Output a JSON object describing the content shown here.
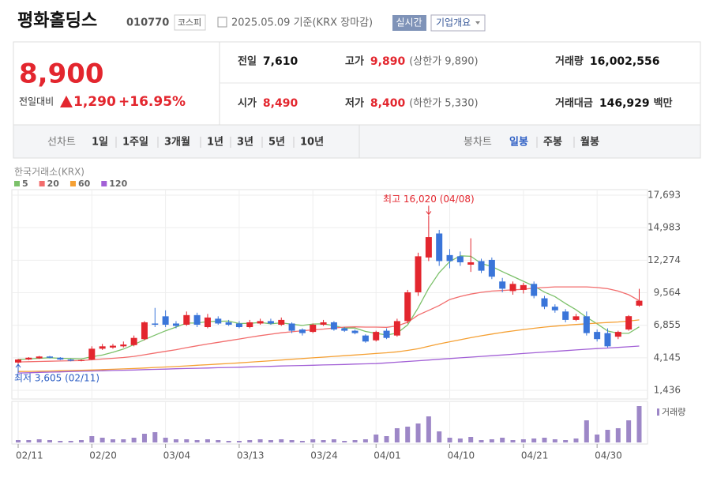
{
  "header": {
    "name": "평화홀딩스",
    "code": "010770",
    "market": "코스피",
    "date": "2025.05.09 기준(KRX 장마감)",
    "realtime": "실시간",
    "company": "기업개요"
  },
  "quote": {
    "price": "8,900",
    "change_label": "전일대비",
    "change": "1,290",
    "change_pct": "+16.95%",
    "items": [
      {
        "label": "전일",
        "value": "7,610"
      },
      {
        "label": "고가",
        "value": "9,890",
        "note": "(상한가 9,890)"
      },
      {
        "label": "거래량",
        "value": "16,002,556"
      },
      {
        "label": "시가",
        "value": "8,490"
      },
      {
        "label": "저가",
        "value": "8,400",
        "note": "(하한가 5,330)"
      },
      {
        "label": "거래대금",
        "value": "146,929",
        "unit": "백만"
      }
    ]
  },
  "tabs": {
    "line_label": "선차트",
    "line": [
      "1일",
      "1주일",
      "3개월",
      "1년",
      "3년",
      "5년",
      "10년"
    ],
    "candle_label": "봉차트",
    "candle": [
      "일봉",
      "주봉",
      "월봉"
    ]
  },
  "chart_data": {
    "type": "candlestick",
    "source": "한국거래소(KRX)",
    "categories": [
      "02/11",
      null,
      null,
      null,
      null,
      null,
      null,
      "02/20",
      null,
      null,
      null,
      null,
      null,
      null,
      "03/04",
      null,
      null,
      null,
      null,
      null,
      null,
      "03/13",
      null,
      null,
      null,
      null,
      null,
      null,
      "03/24",
      null,
      null,
      null,
      null,
      null,
      "04/01",
      null,
      null,
      null,
      null,
      null,
      null,
      "04/10",
      null,
      null,
      null,
      null,
      null,
      null,
      "04/21",
      null,
      null,
      null,
      null,
      null,
      null,
      "04/30",
      null,
      null,
      null,
      null
    ],
    "open": [
      3750,
      4000,
      4100,
      4250,
      4150,
      4000,
      3900,
      4000,
      4900,
      5000,
      5100,
      5200,
      5700,
      7000,
      7600,
      7000,
      6900,
      7700,
      6700,
      7400,
      7100,
      7000,
      6700,
      7000,
      7200,
      6900,
      7000,
      6500,
      6300,
      6900,
      7100,
      6600,
      6400,
      6000,
      5600,
      6400,
      6000,
      7200,
      9600,
      12500,
      14500,
      12700,
      12600,
      11900,
      12200,
      12300,
      10500,
      9700,
      9800,
      10300,
      9100,
      8400,
      8000,
      7300,
      7600,
      6300,
      6200,
      5900,
      6500,
      8490
    ],
    "high": [
      4050,
      4200,
      4300,
      4300,
      4200,
      4050,
      4000,
      5100,
      5300,
      5300,
      5500,
      6000,
      7200,
      8300,
      8100,
      7200,
      8000,
      7900,
      7800,
      7600,
      7300,
      7200,
      7300,
      7400,
      7400,
      7500,
      7100,
      6600,
      7000,
      7300,
      7200,
      6700,
      6500,
      6100,
      6400,
      6600,
      7400,
      9800,
      12900,
      16020,
      14800,
      13200,
      13000,
      14100,
      12400,
      12500,
      10800,
      10500,
      10400,
      10500,
      9300,
      8600,
      8200,
      7800,
      8000,
      6500,
      6600,
      6400,
      7700,
      9890
    ],
    "low": [
      3605,
      3950,
      4050,
      4100,
      3950,
      3850,
      3850,
      3950,
      4800,
      4900,
      5000,
      5100,
      5600,
      6700,
      6700,
      6600,
      6800,
      6700,
      6600,
      6900,
      6800,
      6600,
      6600,
      6900,
      6900,
      6800,
      6200,
      6000,
      6200,
      6800,
      6400,
      6300,
      6100,
      5400,
      5500,
      5700,
      5900,
      7000,
      9300,
      12200,
      11800,
      11600,
      11800,
      11300,
      11200,
      10700,
      9600,
      9400,
      9500,
      9100,
      8200,
      7900,
      7100,
      7200,
      6000,
      5500,
      5000,
      5700,
      6400,
      8400
    ],
    "close": [
      4000,
      4150,
      4250,
      4150,
      4000,
      3900,
      3950,
      4900,
      5100,
      5150,
      5250,
      5800,
      7100,
      6900,
      6900,
      6800,
      7700,
      6900,
      7500,
      7000,
      6900,
      6700,
      7100,
      7200,
      7000,
      7300,
      6400,
      6200,
      6900,
      7100,
      6500,
      6400,
      6200,
      5500,
      6300,
      5800,
      7200,
      9600,
      12600,
      14200,
      12200,
      12200,
      12100,
      12100,
      11400,
      10900,
      9900,
      10300,
      10200,
      9300,
      8400,
      8100,
      7300,
      7600,
      6200,
      5700,
      5100,
      6300,
      7610,
      8900
    ],
    "up_color": "#e3262e",
    "down_color": "#3a75d9",
    "series": [
      {
        "name": "5",
        "color": "#7cc16a",
        "values": [
          4000,
          4050,
          4100,
          4150,
          4100,
          4080,
          4050,
          4230,
          4370,
          4600,
          4870,
          5240,
          5660,
          6030,
          6390,
          6700,
          7040,
          7040,
          7160,
          7180,
          7200,
          7000,
          7020,
          7080,
          6980,
          7060,
          6940,
          6840,
          6960,
          6980,
          6820,
          6620,
          6620,
          6340,
          6180,
          6040,
          6200,
          6880,
          8300,
          9940,
          11240,
          12160,
          12640,
          12600,
          12000,
          11740,
          11320,
          10920,
          10520,
          10120,
          9620,
          9240,
          8660,
          8140,
          7520,
          6980,
          6380,
          6180,
          6180,
          6720
        ]
      },
      {
        "name": "20",
        "color": "#f26d6d",
        "values": [
          3800,
          3820,
          3840,
          3860,
          3880,
          3900,
          3920,
          3980,
          4040,
          4100,
          4170,
          4260,
          4400,
          4540,
          4680,
          4820,
          4990,
          5140,
          5290,
          5430,
          5570,
          5710,
          5850,
          5990,
          6110,
          6230,
          6310,
          6390,
          6470,
          6540,
          6620,
          6700,
          6720,
          6700,
          6700,
          6680,
          6800,
          7100,
          7700,
          8100,
          8500,
          9000,
          9250,
          9450,
          9600,
          9700,
          9750,
          9800,
          9850,
          9950,
          10000,
          10050,
          10050,
          10050,
          10050,
          10000,
          9900,
          9700,
          9400,
          8900
        ]
      },
      {
        "name": "60",
        "color": "#f5a033",
        "values": [
          3000,
          3010,
          3020,
          3040,
          3060,
          3080,
          3100,
          3130,
          3160,
          3190,
          3220,
          3250,
          3290,
          3340,
          3380,
          3420,
          3470,
          3520,
          3570,
          3620,
          3670,
          3720,
          3780,
          3840,
          3900,
          3960,
          4020,
          4080,
          4140,
          4200,
          4260,
          4320,
          4380,
          4440,
          4500,
          4560,
          4640,
          4760,
          4900,
          5100,
          5300,
          5480,
          5650,
          5820,
          5980,
          6120,
          6260,
          6380,
          6500,
          6600,
          6700,
          6780,
          6850,
          6920,
          6980,
          7030,
          7080,
          7130,
          7200,
          7300
        ]
      },
      {
        "name": "120",
        "color": "#a260d6",
        "values": [
          2880,
          2900,
          2930,
          2950,
          2970,
          3000,
          3020,
          3040,
          3060,
          3090,
          3110,
          3130,
          3160,
          3180,
          3200,
          3230,
          3250,
          3270,
          3290,
          3320,
          3340,
          3360,
          3390,
          3410,
          3430,
          3460,
          3480,
          3500,
          3520,
          3550,
          3570,
          3590,
          3620,
          3640,
          3660,
          3720,
          3780,
          3840,
          3900,
          3960,
          4020,
          4080,
          4140,
          4200,
          4260,
          4320,
          4380,
          4440,
          4500,
          4560,
          4620,
          4680,
          4740,
          4800,
          4860,
          4910,
          4960,
          5010,
          5060,
          5120
        ]
      }
    ],
    "volume": {
      "name": "거래량",
      "color": "#9d87c7",
      "values": [
        1044000,
        1044000,
        1392000,
        1044000,
        696000,
        696000,
        1044000,
        2784000,
        2088000,
        1392000,
        1392000,
        2088000,
        3828000,
        4524000,
        2088000,
        1392000,
        1392000,
        1044000,
        1392000,
        1044000,
        696000,
        696000,
        1044000,
        1392000,
        1044000,
        1392000,
        1044000,
        696000,
        1392000,
        1044000,
        1392000,
        696000,
        1044000,
        1392000,
        3480000,
        2784000,
        6264000,
        6960000,
        8352000,
        11484000,
        4872000,
        2088000,
        1740000,
        2436000,
        1044000,
        1392000,
        2088000,
        1044000,
        1392000,
        1740000,
        2088000,
        1392000,
        1044000,
        1740000,
        9744000,
        3480000,
        5568000,
        6264000,
        9744000,
        16002556
      ]
    },
    "ylim": [
      1436,
      17693
    ],
    "yticks": [
      {
        "value": 1436,
        "label": "1,436"
      },
      {
        "value": 4145,
        "label": "4,145"
      },
      {
        "value": 6855,
        "label": "6,855"
      },
      {
        "value": 9564,
        "label": "9,564"
      },
      {
        "value": 12274,
        "label": "12,274"
      },
      {
        "value": 14983,
        "label": "14,983"
      },
      {
        "value": 17693,
        "label": "17,693"
      }
    ],
    "grid": true,
    "high_label": "최고 16,020 (04/08)",
    "low_label": "최저 3,605 (02/11)"
  }
}
